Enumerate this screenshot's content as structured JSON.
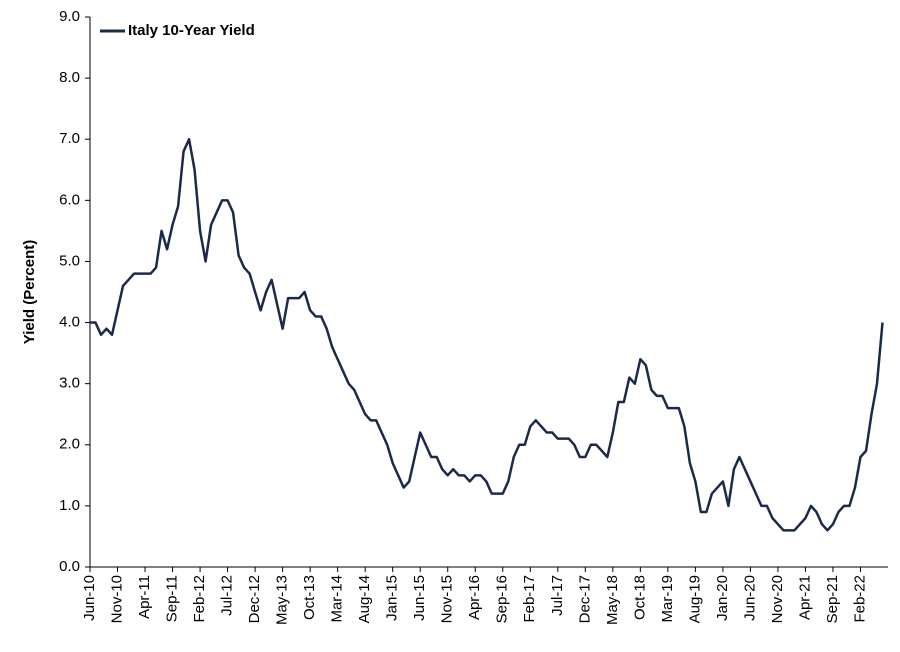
{
  "chart_data": {
    "type": "line",
    "y_label": "Yield (Percent)",
    "x": [
      "2010-06",
      "2010-07",
      "2010-08",
      "2010-09",
      "2010-10",
      "2010-11",
      "2010-12",
      "2011-01",
      "2011-02",
      "2011-03",
      "2011-04",
      "2011-05",
      "2011-06",
      "2011-07",
      "2011-08",
      "2011-09",
      "2011-10",
      "2011-11",
      "2011-12",
      "2012-01",
      "2012-02",
      "2012-03",
      "2012-04",
      "2012-05",
      "2012-06",
      "2012-07",
      "2012-08",
      "2012-09",
      "2012-10",
      "2012-11",
      "2012-12",
      "2013-01",
      "2013-02",
      "2013-03",
      "2013-04",
      "2013-05",
      "2013-06",
      "2013-07",
      "2013-08",
      "2013-09",
      "2013-10",
      "2013-11",
      "2013-12",
      "2014-01",
      "2014-02",
      "2014-03",
      "2014-04",
      "2014-05",
      "2014-06",
      "2014-07",
      "2014-08",
      "2014-09",
      "2014-10",
      "2014-11",
      "2014-12",
      "2015-01",
      "2015-02",
      "2015-03",
      "2015-04",
      "2015-05",
      "2015-06",
      "2015-07",
      "2015-08",
      "2015-09",
      "2015-10",
      "2015-11",
      "2015-12",
      "2016-01",
      "2016-02",
      "2016-03",
      "2016-04",
      "2016-05",
      "2016-06",
      "2016-07",
      "2016-08",
      "2016-09",
      "2016-10",
      "2016-11",
      "2016-12",
      "2017-01",
      "2017-02",
      "2017-03",
      "2017-04",
      "2017-05",
      "2017-06",
      "2017-07",
      "2017-08",
      "2017-09",
      "2017-10",
      "2017-11",
      "2017-12",
      "2018-01",
      "2018-02",
      "2018-03",
      "2018-04",
      "2018-05",
      "2018-06",
      "2018-07",
      "2018-08",
      "2018-09",
      "2018-10",
      "2018-11",
      "2018-12",
      "2019-01",
      "2019-02",
      "2019-03",
      "2019-04",
      "2019-05",
      "2019-06",
      "2019-07",
      "2019-08",
      "2019-09",
      "2019-10",
      "2019-11",
      "2019-12",
      "2020-01",
      "2020-02",
      "2020-03",
      "2020-04",
      "2020-05",
      "2020-06",
      "2020-07",
      "2020-08",
      "2020-09",
      "2020-10",
      "2020-11",
      "2020-12",
      "2021-01",
      "2021-02",
      "2021-03",
      "2021-04",
      "2021-05",
      "2021-06",
      "2021-07",
      "2021-08",
      "2021-09",
      "2021-10",
      "2021-11",
      "2021-12",
      "2022-01",
      "2022-02",
      "2022-03",
      "2022-04",
      "2022-05",
      "2022-06"
    ],
    "series": [
      {
        "name": "Italy 10-Year Yield",
        "color": "#1c2a4a",
        "values": [
          4.0,
          4.0,
          3.8,
          3.9,
          3.8,
          4.2,
          4.6,
          4.7,
          4.8,
          4.8,
          4.8,
          4.8,
          4.9,
          5.5,
          5.2,
          5.6,
          5.9,
          6.8,
          7.0,
          6.5,
          5.5,
          5.0,
          5.6,
          5.8,
          6.0,
          6.0,
          5.8,
          5.1,
          4.9,
          4.8,
          4.5,
          4.2,
          4.5,
          4.7,
          4.3,
          3.9,
          4.4,
          4.4,
          4.4,
          4.5,
          4.2,
          4.1,
          4.1,
          3.9,
          3.6,
          3.4,
          3.2,
          3.0,
          2.9,
          2.7,
          2.5,
          2.4,
          2.4,
          2.2,
          2.0,
          1.7,
          1.5,
          1.3,
          1.4,
          1.8,
          2.2,
          2.0,
          1.8,
          1.8,
          1.6,
          1.5,
          1.6,
          1.5,
          1.5,
          1.4,
          1.5,
          1.5,
          1.4,
          1.2,
          1.2,
          1.2,
          1.4,
          1.8,
          2.0,
          2.0,
          2.3,
          2.4,
          2.3,
          2.2,
          2.2,
          2.1,
          2.1,
          2.1,
          2.0,
          1.8,
          1.8,
          2.0,
          2.0,
          1.9,
          1.8,
          2.2,
          2.7,
          2.7,
          3.1,
          3.0,
          3.4,
          3.3,
          2.9,
          2.8,
          2.8,
          2.6,
          2.6,
          2.6,
          2.3,
          1.7,
          1.4,
          0.9,
          0.9,
          1.2,
          1.3,
          1.4,
          1.0,
          1.6,
          1.8,
          1.6,
          1.4,
          1.2,
          1.0,
          1.0,
          0.8,
          0.7,
          0.6,
          0.6,
          0.6,
          0.7,
          0.8,
          1.0,
          0.9,
          0.7,
          0.6,
          0.7,
          0.9,
          1.0,
          1.0,
          1.3,
          1.8,
          1.9,
          2.5,
          3.0,
          4.0
        ]
      }
    ],
    "xlim": [
      "2010-06",
      "2022-07"
    ],
    "xticks": [
      {
        "value": "2010-06",
        "label": "Jun-10"
      },
      {
        "value": "2010-11",
        "label": "Nov-10"
      },
      {
        "value": "2011-04",
        "label": "Apr-11"
      },
      {
        "value": "2011-09",
        "label": "Sep-11"
      },
      {
        "value": "2012-02",
        "label": "Feb-12"
      },
      {
        "value": "2012-07",
        "label": "Jul-12"
      },
      {
        "value": "2012-12",
        "label": "Dec-12"
      },
      {
        "value": "2013-05",
        "label": "May-13"
      },
      {
        "value": "2013-10",
        "label": "Oct-13"
      },
      {
        "value": "2014-03",
        "label": "Mar-14"
      },
      {
        "value": "2014-08",
        "label": "Aug-14"
      },
      {
        "value": "2015-01",
        "label": "Jan-15"
      },
      {
        "value": "2015-06",
        "label": "Jun-15"
      },
      {
        "value": "2015-11",
        "label": "Nov-15"
      },
      {
        "value": "2016-04",
        "label": "Apr-16"
      },
      {
        "value": "2016-09",
        "label": "Sep-16"
      },
      {
        "value": "2017-02",
        "label": "Feb-17"
      },
      {
        "value": "2017-07",
        "label": "Jul-17"
      },
      {
        "value": "2017-12",
        "label": "Dec-17"
      },
      {
        "value": "2018-05",
        "label": "May-18"
      },
      {
        "value": "2018-10",
        "label": "Oct-18"
      },
      {
        "value": "2019-03",
        "label": "Mar-19"
      },
      {
        "value": "2019-08",
        "label": "Aug-19"
      },
      {
        "value": "2020-01",
        "label": "Jan-20"
      },
      {
        "value": "2020-06",
        "label": "Jun-20"
      },
      {
        "value": "2020-11",
        "label": "Nov-20"
      },
      {
        "value": "2021-04",
        "label": "Apr-21"
      },
      {
        "value": "2021-09",
        "label": "Sep-21"
      },
      {
        "value": "2022-02",
        "label": "Feb-22"
      }
    ],
    "ylim": [
      0,
      9
    ],
    "yticks": [
      {
        "value": 0,
        "label": "0.0"
      },
      {
        "value": 1,
        "label": "1.0"
      },
      {
        "value": 2,
        "label": "2.0"
      },
      {
        "value": 3,
        "label": "3.0"
      },
      {
        "value": 4,
        "label": "4.0"
      },
      {
        "value": 5,
        "label": "5.0"
      },
      {
        "value": 6,
        "label": "6.0"
      },
      {
        "value": 7,
        "label": "7.0"
      },
      {
        "value": 8,
        "label": "8.0"
      },
      {
        "value": 9,
        "label": "9.0"
      }
    ],
    "legend": "upper left",
    "grid": false
  }
}
